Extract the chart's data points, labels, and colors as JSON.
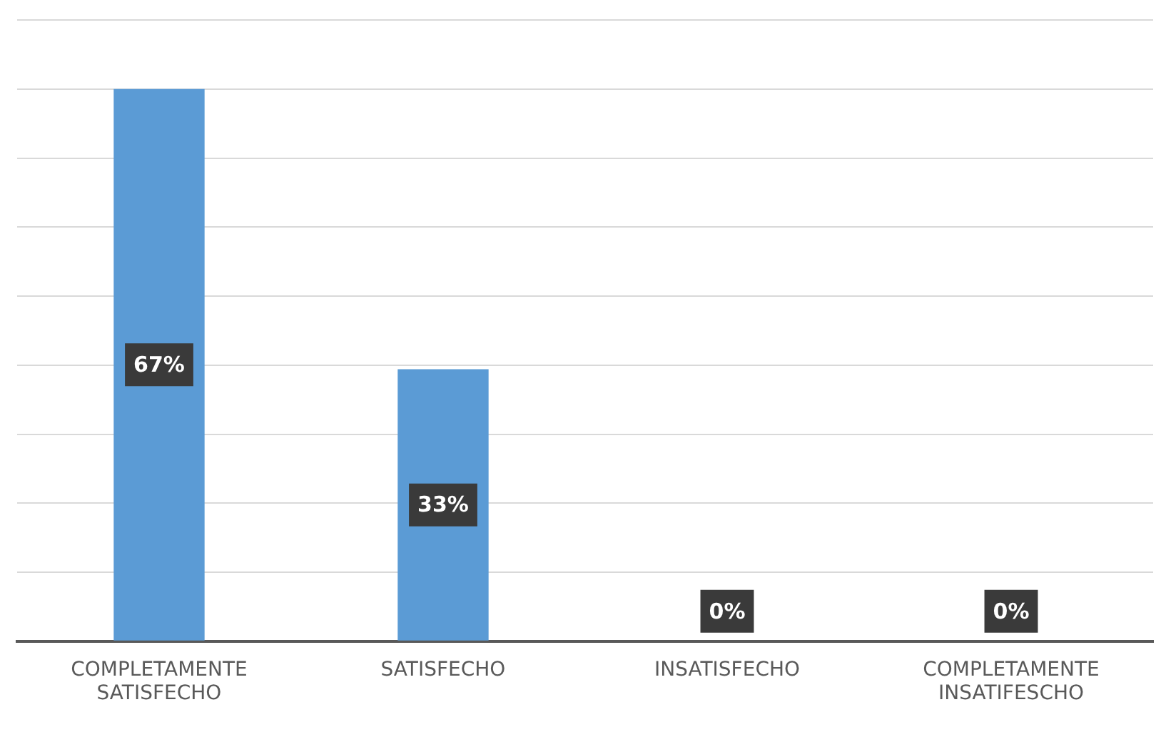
{
  "chart_data": {
    "type": "bar",
    "categories": [
      "COMPLETAMENTE SATISFECHO",
      "SATISFECHO",
      "INSATISFECHO",
      "COMPLETAMENTE INSATIFESCHO"
    ],
    "values": [
      67,
      33,
      0,
      0
    ],
    "color": "#5b9bd5",
    "value_labels": [
      "67%",
      "33%",
      "0%",
      "0%"
    ],
    "ylim": [
      0,
      75.375
    ],
    "yticks": [
      {
        "value": 0,
        "label": null
      },
      {
        "value": 8.375,
        "label": null
      },
      {
        "value": 16.75,
        "label": null
      },
      {
        "value": 25.125,
        "label": null
      },
      {
        "value": 33.5,
        "label": null
      },
      {
        "value": 41.875,
        "label": null
      },
      {
        "value": 50.25,
        "label": null
      },
      {
        "value": 58.625,
        "label": null
      },
      {
        "value": 67,
        "label": null
      },
      {
        "value": 75.375,
        "label": null
      }
    ],
    "grid": "y",
    "legend": false,
    "tick_labels": "x"
  }
}
